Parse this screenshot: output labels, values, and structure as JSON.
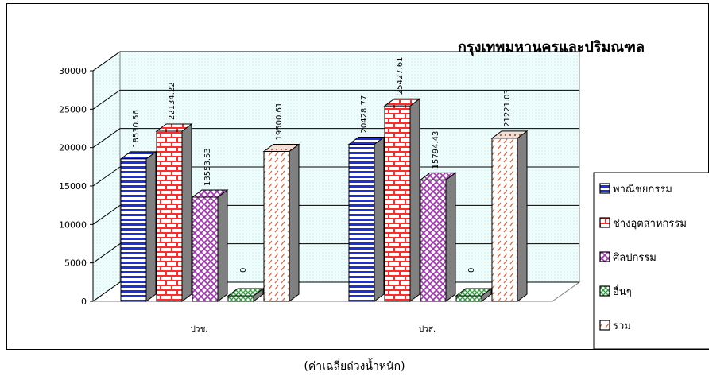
{
  "chart_data": {
    "type": "bar",
    "title": "กรุงเทพมหานครและปริมณฑล",
    "categories": [
      "ปวช.",
      "ปวส."
    ],
    "series": [
      {
        "name": "พาณิชยกรรม",
        "values": [
          18530.56,
          20428.77
        ]
      },
      {
        "name": "ช่างอุตสาหกรรม",
        "values": [
          22134.22,
          25427.61
        ]
      },
      {
        "name": "ศิลปกรรม",
        "values": [
          13553.53,
          15794.43
        ]
      },
      {
        "name": "อื่นๆ",
        "values": [
          0,
          0
        ]
      },
      {
        "name": "รวม",
        "values": [
          19500.61,
          21221.03
        ]
      }
    ],
    "value_labels": [
      [
        "18530.56",
        "22134.22",
        "13553.53",
        "0",
        "19500.61"
      ],
      [
        "20428.77",
        "25427.61",
        "15794.43",
        "0",
        "21221.03"
      ]
    ],
    "y_ticks": [
      "0",
      "5000",
      "10000",
      "15000",
      "20000",
      "25000",
      "30000"
    ],
    "ylim": [
      0,
      30000
    ],
    "xlabel": "",
    "ylabel": "",
    "grid": true,
    "legend_position": "right",
    "colors": {
      "series": [
        "#1f2fd6",
        "#ff3333",
        "#a033b0",
        "#2e9e3e",
        "#e36a3d"
      ],
      "wall": "#e9fbfb",
      "grid": "#000000"
    }
  },
  "caption": "(ค่าเฉลี่ยถ่วงน้ำหนัก)"
}
